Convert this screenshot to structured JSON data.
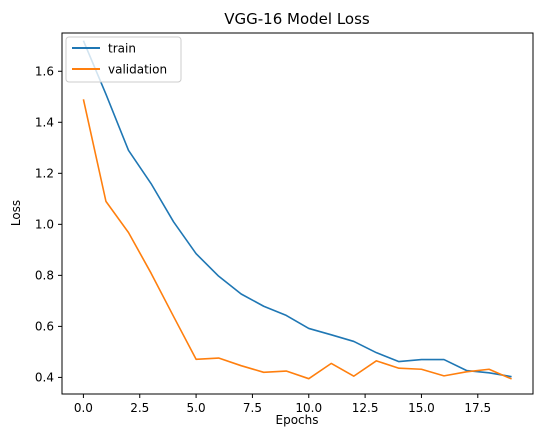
{
  "chart_data": {
    "type": "line",
    "title": "VGG-16 Model Loss",
    "xlabel": "Epochs",
    "ylabel": "Loss",
    "xlim": [
      -0.95,
      19.95
    ],
    "ylim": [
      0.335,
      1.75
    ],
    "x": [
      0,
      1,
      2,
      3,
      4,
      5,
      6,
      7,
      8,
      9,
      10,
      11,
      12,
      13,
      14,
      15,
      16,
      17,
      18,
      19
    ],
    "xticks": [
      0.0,
      2.5,
      5.0,
      7.5,
      10.0,
      12.5,
      15.0,
      17.5
    ],
    "xtick_labels": [
      "0.0",
      "2.5",
      "5.0",
      "7.5",
      "10.0",
      "12.5",
      "15.0",
      "17.5"
    ],
    "yticks": [
      0.4,
      0.6,
      0.8,
      1.0,
      1.2,
      1.4,
      1.6
    ],
    "ytick_labels": [
      "0.4",
      "0.6",
      "0.8",
      "1.0",
      "1.2",
      "1.4",
      "1.6"
    ],
    "grid": false,
    "legend_position": "top-left",
    "series": [
      {
        "name": "train",
        "color": "#1f77b4",
        "values": [
          1.72,
          1.51,
          1.29,
          1.16,
          1.01,
          0.885,
          0.797,
          0.727,
          0.679,
          0.643,
          0.592,
          0.567,
          0.541,
          0.497,
          0.462,
          0.47,
          0.47,
          0.427,
          0.418,
          0.403
        ]
      },
      {
        "name": "validation",
        "color": "#ff7f0e",
        "values": [
          1.49,
          1.09,
          0.968,
          0.809,
          0.639,
          0.471,
          0.476,
          0.446,
          0.42,
          0.425,
          0.395,
          0.455,
          0.405,
          0.465,
          0.436,
          0.432,
          0.406,
          0.422,
          0.432,
          0.394
        ]
      }
    ]
  }
}
